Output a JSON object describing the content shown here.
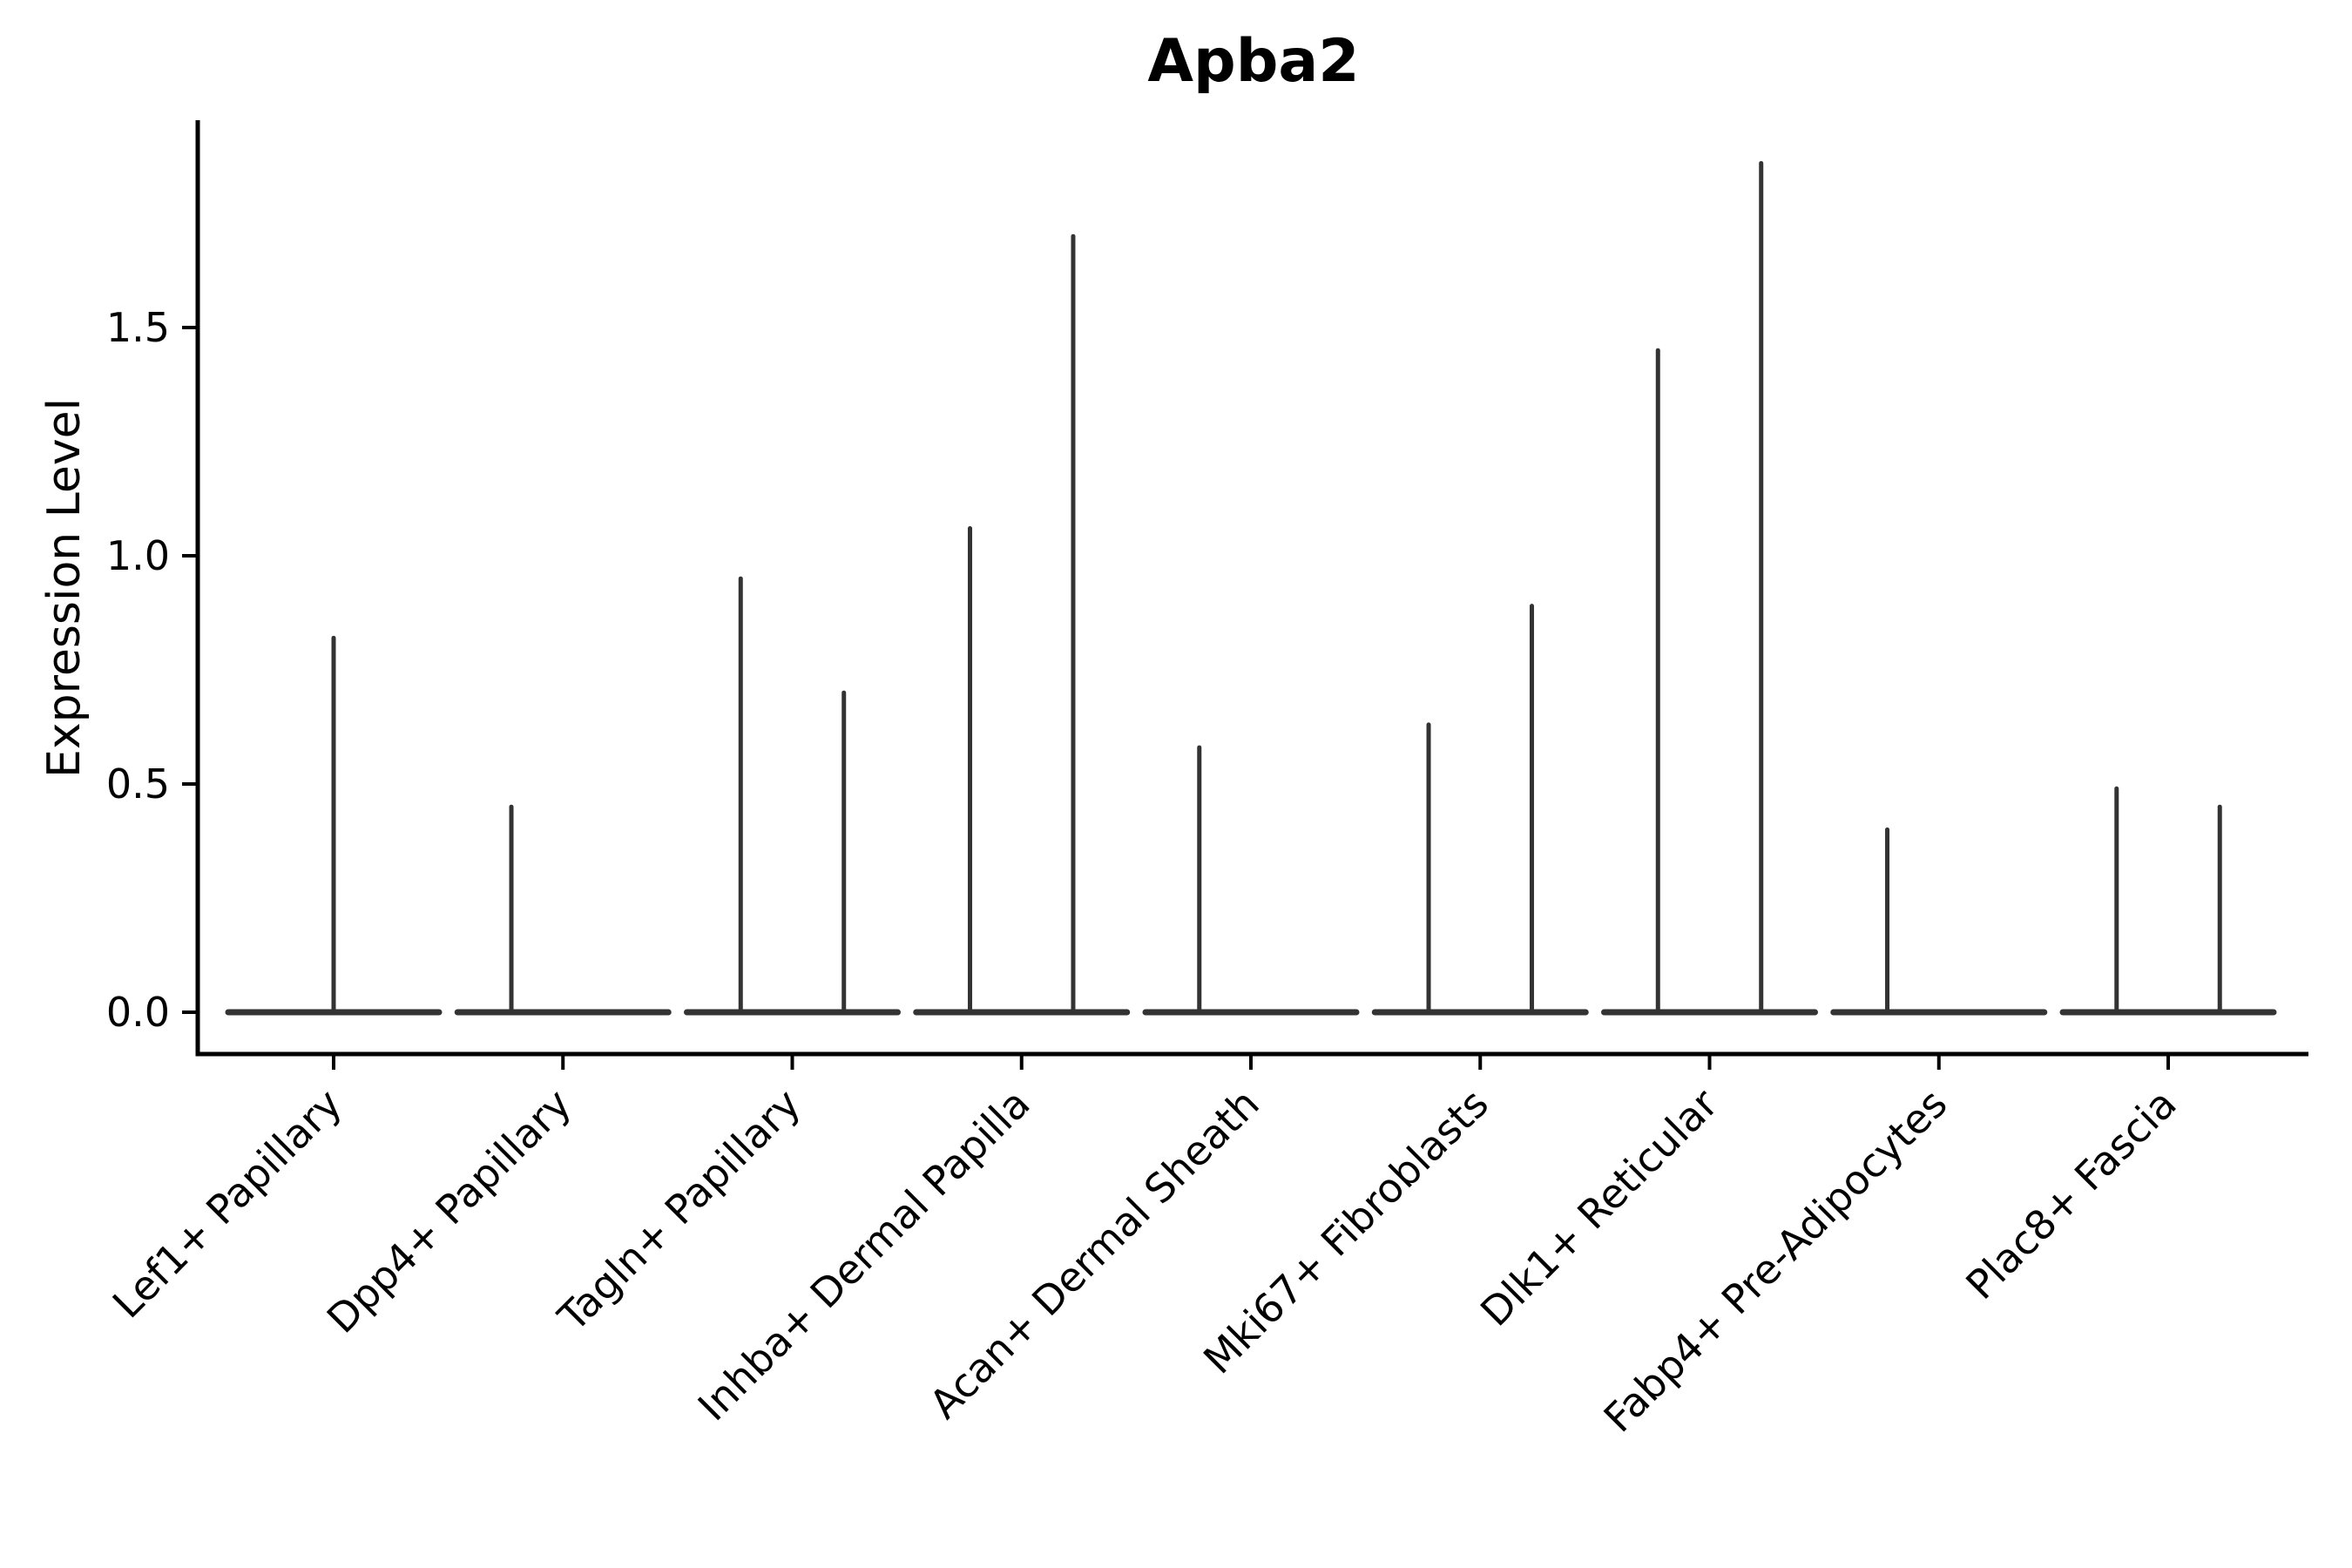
{
  "chart_data": {
    "type": "violin",
    "title": "Apba2",
    "ylabel": "Expression Level",
    "xlabel": "",
    "ytick_labels": [
      "0.0",
      "0.5",
      "1.0",
      "1.5"
    ],
    "ylim": [
      -0.09,
      1.95
    ],
    "grid": false,
    "legend": null,
    "colors": {
      "violin_stroke": "#333333",
      "axis": "#000000",
      "background": "#ffffff"
    },
    "categories": [
      {
        "label": "Lef1+ Papillary",
        "violins": [
          {
            "offset": 0.0,
            "max_expression": 0.82
          }
        ]
      },
      {
        "label": "Dpp4+ Papillary",
        "violins": [
          {
            "offset": -0.225,
            "max_expression": 0.45
          }
        ]
      },
      {
        "label": "Tagln+ Papillary",
        "violins": [
          {
            "offset": -0.225,
            "max_expression": 0.95
          },
          {
            "offset": 0.225,
            "max_expression": 0.7
          }
        ]
      },
      {
        "label": "Inhba+ Dermal Papilla",
        "violins": [
          {
            "offset": -0.225,
            "max_expression": 1.06
          },
          {
            "offset": 0.225,
            "max_expression": 1.7
          }
        ]
      },
      {
        "label": "Acan+ Dermal Sheath",
        "violins": [
          {
            "offset": -0.225,
            "max_expression": 0.58
          }
        ]
      },
      {
        "label": "Mki67+ Fibroblasts",
        "violins": [
          {
            "offset": -0.225,
            "max_expression": 0.63
          },
          {
            "offset": 0.225,
            "max_expression": 0.89
          }
        ]
      },
      {
        "label": "Dlk1+ Reticular",
        "violins": [
          {
            "offset": -0.225,
            "max_expression": 1.45
          },
          {
            "offset": 0.225,
            "max_expression": 1.86
          }
        ]
      },
      {
        "label": "Fabp4+ Pre-Adipocytes",
        "violins": [
          {
            "offset": -0.225,
            "max_expression": 0.4
          }
        ]
      },
      {
        "label": "Plac8+ Fascia",
        "violins": [
          {
            "offset": -0.225,
            "max_expression": 0.49
          },
          {
            "offset": 0.225,
            "max_expression": 0.45
          }
        ]
      }
    ]
  }
}
